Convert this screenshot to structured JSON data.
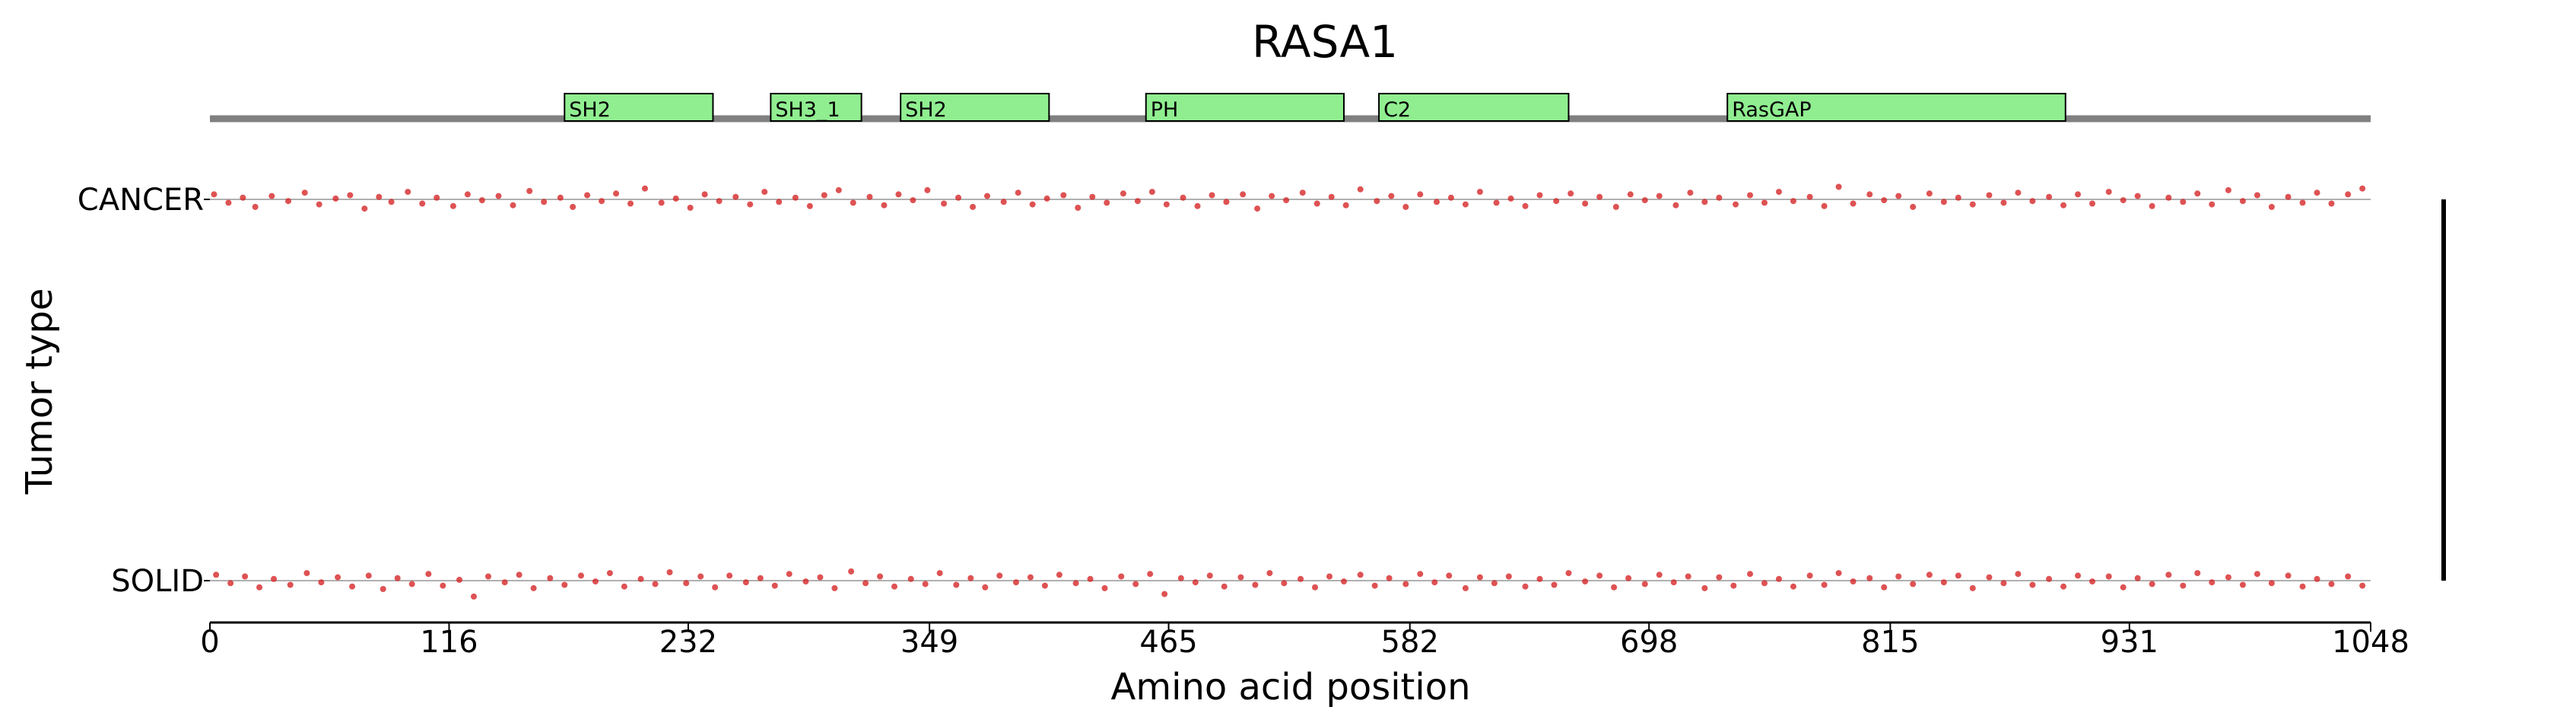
{
  "chart_data": {
    "type": "scatter",
    "title": "RASA1",
    "xlabel": "Amino acid position",
    "ylabel": "Tumor type",
    "xlim": [
      0,
      1048
    ],
    "x_ticks": [
      0,
      116,
      232,
      349,
      465,
      582,
      698,
      815,
      931,
      1048
    ],
    "categories": [
      "CANCER",
      "SOLID"
    ],
    "protein_length": 1048,
    "domains": [
      {
        "name": "SH2",
        "start": 172,
        "end": 244
      },
      {
        "name": "SH3_1",
        "start": 272,
        "end": 316
      },
      {
        "name": "SH2",
        "start": 335,
        "end": 407
      },
      {
        "name": "PH",
        "start": 454,
        "end": 550
      },
      {
        "name": "C2",
        "start": 567,
        "end": 659
      },
      {
        "name": "RasGAP",
        "start": 736,
        "end": 900
      }
    ],
    "series": [
      {
        "category": "CANCER",
        "x": [
          2,
          9,
          16,
          22,
          30,
          38,
          46,
          53,
          61,
          68,
          75,
          82,
          88,
          96,
          103,
          110,
          118,
          125,
          132,
          140,
          147,
          155,
          162,
          170,
          176,
          183,
          190,
          197,
          204,
          211,
          219,
          226,
          233,
          240,
          247,
          255,
          262,
          269,
          276,
          284,
          291,
          298,
          305,
          312,
          320,
          327,
          334,
          341,
          348,
          356,
          363,
          370,
          377,
          385,
          392,
          399,
          406,
          414,
          421,
          428,
          435,
          443,
          450,
          457,
          464,
          472,
          479,
          486,
          493,
          501,
          508,
          515,
          522,
          530,
          537,
          544,
          551,
          558,
          566,
          573,
          580,
          587,
          595,
          602,
          609,
          616,
          624,
          631,
          638,
          645,
          653,
          660,
          667,
          674,
          682,
          689,
          696,
          703,
          711,
          718,
          725,
          732,
          740,
          747,
          754,
          761,
          768,
          776,
          783,
          790,
          797,
          805,
          812,
          819,
          826,
          834,
          841,
          848,
          855,
          863,
          870,
          877,
          884,
          892,
          899,
          906,
          913,
          921,
          928,
          935,
          942,
          950,
          957,
          964,
          971,
          979,
          986,
          993,
          1000,
          1008,
          1015,
          1022,
          1029,
          1037,
          1044
        ],
        "offset": [
          0.6,
          -0.4,
          0.2,
          -0.9,
          0.4,
          -0.2,
          0.8,
          -0.6,
          0.1,
          0.5,
          -1.1,
          0.3,
          -0.3,
          0.9,
          -0.5,
          0.2,
          -0.8,
          0.6,
          -0.1,
          0.4,
          -0.7,
          1.0,
          -0.3,
          0.2,
          -0.9,
          0.5,
          -0.2,
          0.7,
          -0.5,
          1.3,
          -0.4,
          0.1,
          -1.0,
          0.6,
          -0.2,
          0.3,
          -0.6,
          0.9,
          -0.3,
          0.2,
          -0.8,
          0.5,
          1.1,
          -0.4,
          0.3,
          -0.7,
          0.6,
          -0.1,
          1.1,
          -0.5,
          0.2,
          -0.9,
          0.4,
          -0.3,
          0.8,
          -0.6,
          0.1,
          0.5,
          -1.0,
          0.3,
          -0.4,
          0.7,
          -0.2,
          0.9,
          -0.6,
          0.2,
          -0.8,
          0.5,
          -0.3,
          0.6,
          -1.1,
          0.4,
          -0.1,
          0.8,
          -0.5,
          0.3,
          -0.7,
          1.2,
          -0.2,
          0.4,
          -0.9,
          0.6,
          -0.3,
          0.2,
          -0.6,
          0.9,
          -0.4,
          0.1,
          -0.8,
          0.5,
          -0.2,
          0.7,
          -0.5,
          0.3,
          -0.9,
          0.6,
          -0.1,
          0.4,
          -0.7,
          0.8,
          -0.3,
          0.2,
          -0.6,
          0.5,
          -0.4,
          0.9,
          -0.2,
          0.3,
          -0.8,
          1.5,
          -0.5,
          0.6,
          -0.1,
          0.4,
          -0.9,
          0.7,
          -0.3,
          0.2,
          -0.6,
          0.5,
          -0.4,
          0.8,
          -0.2,
          0.3,
          -0.7,
          0.6,
          -0.5,
          0.9,
          -0.1,
          0.4,
          -0.8,
          0.2,
          -0.3,
          0.7,
          -0.6,
          1.1,
          -0.2,
          0.5,
          -0.9,
          0.3,
          -0.4,
          0.8,
          -0.5,
          0.6,
          1.3
        ]
      },
      {
        "category": "SOLID",
        "x": [
          3,
          10,
          17,
          24,
          31,
          39,
          47,
          54,
          62,
          69,
          77,
          84,
          91,
          98,
          106,
          113,
          121,
          128,
          135,
          143,
          150,
          157,
          165,
          172,
          180,
          187,
          194,
          201,
          209,
          216,
          223,
          231,
          238,
          245,
          252,
          260,
          267,
          274,
          281,
          289,
          296,
          303,
          311,
          318,
          325,
          332,
          340,
          347,
          354,
          362,
          369,
          376,
          383,
          391,
          398,
          405,
          412,
          420,
          427,
          434,
          442,
          449,
          456,
          463,
          471,
          478,
          485,
          492,
          500,
          507,
          514,
          521,
          529,
          536,
          543,
          550,
          558,
          565,
          572,
          580,
          587,
          594,
          601,
          609,
          616,
          623,
          630,
          638,
          645,
          652,
          659,
          667,
          674,
          681,
          688,
          696,
          703,
          710,
          717,
          725,
          732,
          739,
          747,
          754,
          761,
          768,
          776,
          783,
          790,
          797,
          805,
          812,
          819,
          826,
          834,
          841,
          848,
          855,
          863,
          870,
          877,
          884,
          892,
          899,
          906,
          913,
          921,
          928,
          935,
          942,
          950,
          957,
          964,
          971,
          979,
          986,
          993,
          1000,
          1008,
          1015,
          1022,
          1029,
          1037,
          1044
        ],
        "offset": [
          0.7,
          -0.3,
          0.5,
          -0.8,
          0.2,
          -0.5,
          0.9,
          -0.2,
          0.4,
          -0.7,
          0.6,
          -1.0,
          0.3,
          -0.4,
          0.8,
          -0.6,
          0.1,
          -1.9,
          0.5,
          -0.2,
          0.7,
          -0.9,
          0.3,
          -0.5,
          0.6,
          -0.1,
          0.9,
          -0.7,
          0.2,
          -0.4,
          1.0,
          -0.3,
          0.5,
          -0.8,
          0.6,
          -0.2,
          0.3,
          -0.6,
          0.8,
          -0.1,
          0.4,
          -0.9,
          1.1,
          -0.3,
          0.5,
          -0.7,
          0.2,
          -0.4,
          0.9,
          -0.5,
          0.3,
          -0.8,
          0.6,
          -0.2,
          0.4,
          -0.6,
          0.7,
          -0.3,
          0.2,
          -0.9,
          0.5,
          -0.4,
          0.8,
          -1.6,
          0.3,
          -0.2,
          0.6,
          -0.7,
          0.4,
          -0.5,
          0.9,
          -0.3,
          0.2,
          -0.8,
          0.5,
          -0.1,
          0.7,
          -0.6,
          0.3,
          -0.4,
          0.8,
          -0.2,
          0.6,
          -0.9,
          0.4,
          -0.3,
          0.5,
          -0.7,
          0.2,
          -0.5,
          0.9,
          -0.1,
          0.6,
          -0.8,
          0.3,
          -0.4,
          0.7,
          -0.2,
          0.5,
          -0.9,
          0.4,
          -0.6,
          0.8,
          -0.3,
          0.2,
          -0.7,
          0.6,
          -0.5,
          0.9,
          -0.1,
          0.3,
          -0.8,
          0.5,
          -0.4,
          0.7,
          -0.2,
          0.6,
          -0.9,
          0.4,
          -0.3,
          0.8,
          -0.5,
          0.2,
          -0.7,
          0.6,
          -0.1,
          0.5,
          -0.8,
          0.3,
          -0.4,
          0.7,
          -0.6,
          0.9,
          -0.2,
          0.4,
          -0.5,
          0.8,
          -0.3,
          0.6,
          -0.7,
          0.2,
          -0.4,
          0.5,
          -0.6
        ]
      }
    ],
    "point_color": "#d62728",
    "domain_fill": "#90ee90",
    "backbone_color": "#808080",
    "grid": false
  }
}
